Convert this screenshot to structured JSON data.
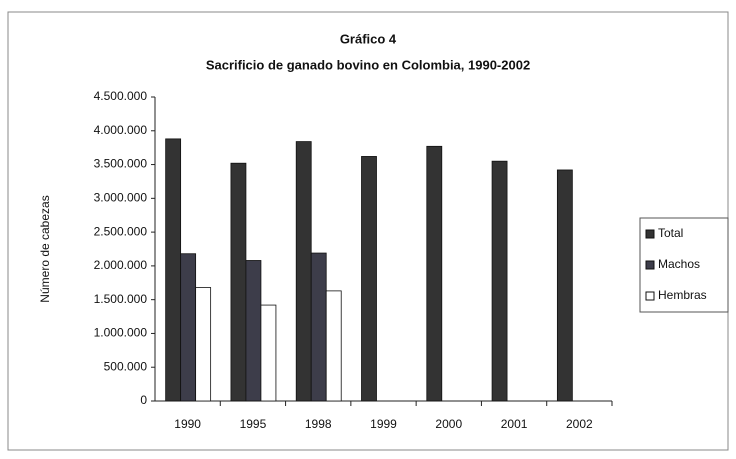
{
  "chart_data": {
    "type": "bar",
    "title": "Gráfico 4",
    "subtitle": "Sacrificio de ganado bovino en Colombia, 1990-2002",
    "y_label": "Número de cabezas",
    "categories": [
      "1990",
      "1995",
      "1998",
      "1999",
      "2000",
      "2001",
      "2002"
    ],
    "series": [
      {
        "name": "Total",
        "color": "#333333",
        "values": [
          3880000,
          3520000,
          3840000,
          3620000,
          3770000,
          3550000,
          3420000
        ]
      },
      {
        "name": "Machos",
        "color": "#3d3d4a",
        "values": [
          2180000,
          2080000,
          2190000,
          null,
          null,
          null,
          null
        ]
      },
      {
        "name": "Hembras",
        "color": "#ffffff",
        "values": [
          1680000,
          1420000,
          1630000,
          null,
          null,
          null,
          null
        ]
      }
    ],
    "ylim": [
      0,
      4500000
    ],
    "yticks": [
      0,
      {
        "value": 500000,
        "label": "500.000"
      },
      {
        "value": 1000000,
        "label": "1.000.000"
      },
      {
        "value": 1500000,
        "label": "1.500.000"
      },
      {
        "value": 2000000,
        "label": "2.000.000"
      },
      {
        "value": 2500000,
        "label": "2.500.000"
      },
      {
        "value": 3000000,
        "label": "3.000.000"
      },
      {
        "value": 3500000,
        "label": "3.500.000"
      },
      {
        "value": 4000000,
        "label": "4.000.000"
      },
      {
        "value": 4500000,
        "label": "4.500.000"
      }
    ],
    "grid": false,
    "legend": "right"
  }
}
